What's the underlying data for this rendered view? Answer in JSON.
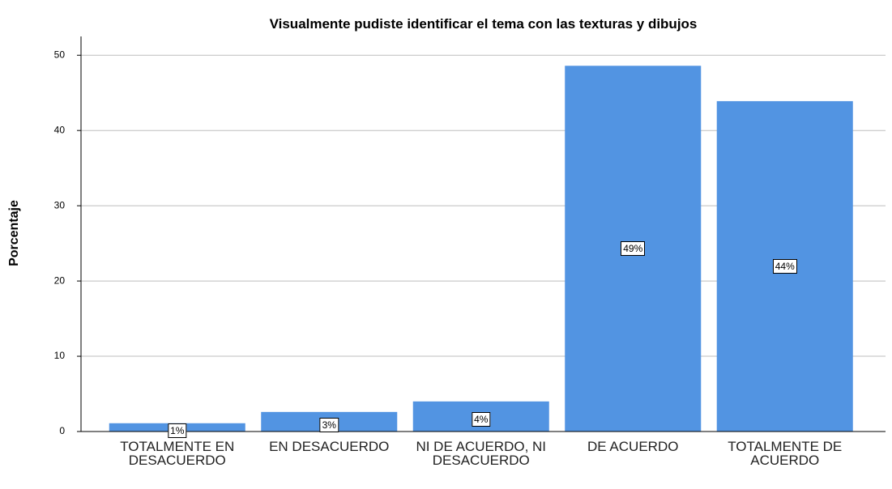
{
  "chart_data": {
    "type": "bar",
    "title": "Visualmente pudiste identificar el tema con las texturas y dibujos",
    "ylabel": "Porcentaje",
    "categories": [
      "TOTALMENTE EN DESACUERDO",
      "EN DESACUERDO",
      "NI DE ACUERDO, NI DESACUERDO",
      "DE ACUERDO",
      "TOTALMENTE DE ACUERDO"
    ],
    "values": [
      1.1,
      2.6,
      4.0,
      48.6,
      43.9
    ],
    "value_labels": [
      "1%",
      "3%",
      "4%",
      "49%",
      "44%"
    ],
    "color": "#5294e2",
    "ylim": [
      0,
      52.5
    ],
    "yticks": [
      0,
      10,
      20,
      30,
      40,
      50
    ],
    "grid": true
  }
}
